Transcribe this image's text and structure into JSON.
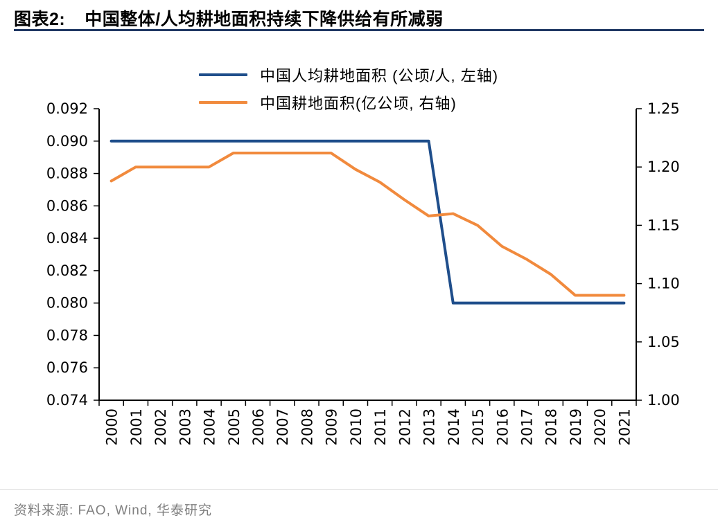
{
  "header": {
    "tag": "图表2:",
    "title": "中国整体/人均耕地面积持续下降供给有所减弱"
  },
  "colors": {
    "title_rule": "#1F3864",
    "per_capita_line": "#1F4E8B",
    "total_area_line": "#F18A3D",
    "axis": "#000000",
    "source_text": "#7F7F7F",
    "source_rule": "#D9D9D9"
  },
  "legend": [
    {
      "label": "中国人均耕地面积 (公顷/人, 左轴)",
      "color": "#1F4E8B"
    },
    {
      "label": "中国耕地面积(亿公顷, 右轴)",
      "color": "#F18A3D"
    }
  ],
  "source": {
    "text": "资料来源: FAO, Wind, 华泰研究"
  },
  "chart_data": {
    "type": "line",
    "title": "中国整体/人均耕地面积持续下降供给有所减弱",
    "grid": false,
    "legend_position": "top",
    "categories": [
      "2000",
      "2001",
      "2002",
      "2003",
      "2004",
      "2005",
      "2006",
      "2007",
      "2008",
      "2009",
      "2010",
      "2011",
      "2012",
      "2013",
      "2014",
      "2015",
      "2016",
      "2017",
      "2018",
      "2019",
      "2020",
      "2021"
    ],
    "series": [
      {
        "name": "中国人均耕地面积 (公顷/人, 左轴)",
        "axis": "left",
        "color": "#1F4E8B",
        "values": [
          0.09,
          0.09,
          0.09,
          0.09,
          0.09,
          0.09,
          0.09,
          0.09,
          0.09,
          0.09,
          0.09,
          0.09,
          0.09,
          0.09,
          0.08,
          0.08,
          0.08,
          0.08,
          0.08,
          0.08,
          0.08,
          0.08
        ]
      },
      {
        "name": "中国耕地面积(亿公顷, 右轴)",
        "axis": "right",
        "color": "#F18A3D",
        "values": [
          1.188,
          1.2,
          1.2,
          1.2,
          1.2,
          1.212,
          1.212,
          1.212,
          1.212,
          1.212,
          1.198,
          1.187,
          1.172,
          1.158,
          1.16,
          1.15,
          1.132,
          1.121,
          1.108,
          1.09,
          1.09,
          1.09
        ]
      }
    ],
    "left_axis": {
      "min": 0.074,
      "max": 0.092,
      "step": 0.002,
      "decimals": 3,
      "ticks": [
        "0.074",
        "0.076",
        "0.078",
        "0.080",
        "0.082",
        "0.084",
        "0.086",
        "0.088",
        "0.090",
        "0.092"
      ]
    },
    "right_axis": {
      "min": 1.0,
      "max": 1.25,
      "step": 0.05,
      "decimals": 2,
      "ticks": [
        "1.00",
        "1.05",
        "1.10",
        "1.15",
        "1.20",
        "1.25"
      ]
    }
  }
}
